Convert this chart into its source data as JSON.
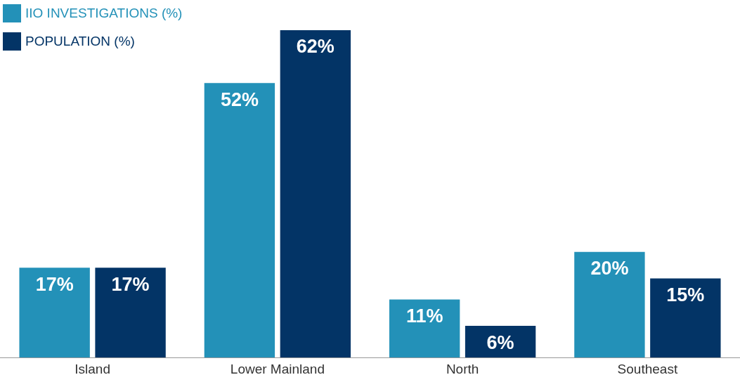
{
  "chart_data": {
    "type": "bar",
    "categories": [
      "Island",
      "Lower Mainland",
      "North",
      "Southeast"
    ],
    "series": [
      {
        "name": "IIO INVESTIGATIONS (%)",
        "color": "#2391b8",
        "values": [
          17,
          52,
          11,
          20
        ],
        "value_labels": [
          "17%",
          "52%",
          "11%",
          "20%"
        ]
      },
      {
        "name": "POPULATION (%)",
        "color": "#033466",
        "values": [
          17,
          62,
          6,
          15
        ],
        "value_labels": [
          "17%",
          "62%",
          "6%",
          "15%"
        ]
      }
    ],
    "legend": "top left",
    "grid": false
  }
}
